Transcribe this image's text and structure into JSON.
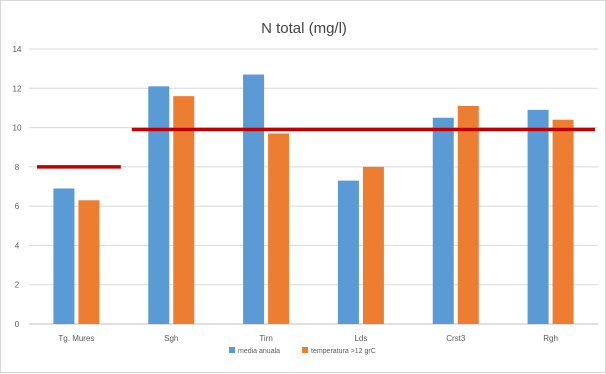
{
  "chart_data": {
    "type": "bar",
    "title": "N total (mg/l)",
    "categories": [
      "Tg. Mures",
      "Sgh",
      "Tirn",
      "Lds",
      "Crst3",
      "Rgh"
    ],
    "series": [
      {
        "name": "media anuala",
        "values": [
          6.9,
          12.1,
          12.7,
          7.3,
          10.5,
          10.9
        ]
      },
      {
        "name": "temperatura >12 grC",
        "values": [
          6.3,
          11.6,
          9.7,
          8.0,
          11.1,
          10.4
        ]
      }
    ],
    "yticks": [
      "0",
      "2",
      "4",
      "6",
      "8",
      "10",
      "12",
      "14"
    ],
    "ylim": [
      0,
      14
    ],
    "grid": true,
    "legend_position": "bottom",
    "reference_lines": [
      {
        "value": 8,
        "from_category": 0,
        "to_category": 0
      },
      {
        "value": 9.9,
        "from_category": 1,
        "to_category": 5
      }
    ],
    "colors": {
      "series": [
        "#5b9bd5",
        "#ed7d31"
      ],
      "reference_line": "#c00000",
      "grid": "#d9d9d9"
    }
  }
}
